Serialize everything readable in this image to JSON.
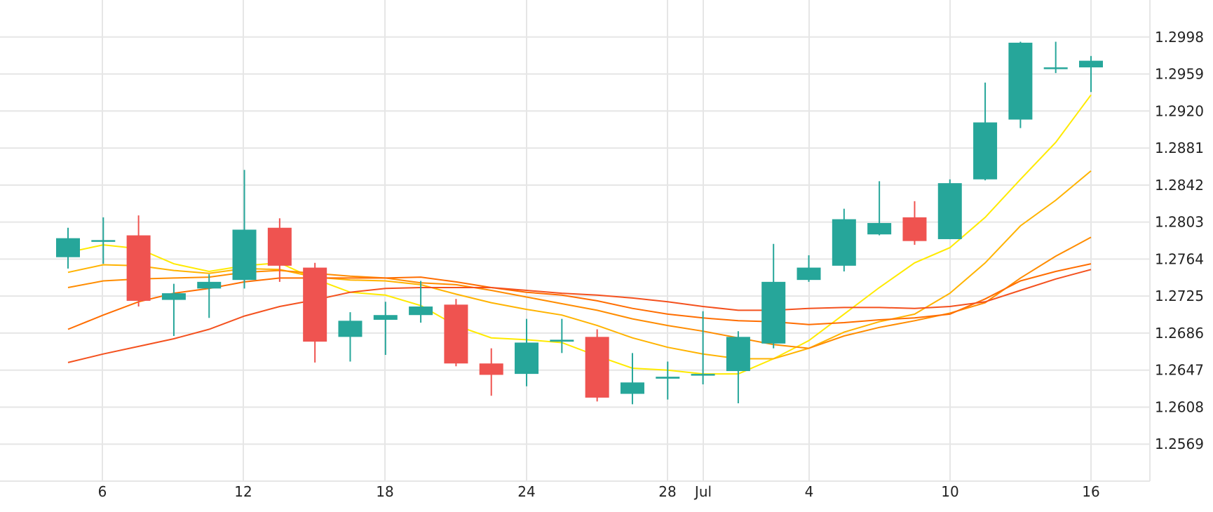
{
  "chart_data": {
    "type": "candlestick",
    "title": "",
    "xlabel": "",
    "ylabel": "",
    "grid": true,
    "colors": {
      "up": "#26a69a",
      "down": "#ef5350",
      "grid": "#e6e6e6",
      "text": "#222222"
    },
    "x_range": [
      1.0,
      41.2
    ],
    "y_range": [
      1.253,
      1.3037
    ],
    "x_ticks": [
      {
        "x": 4,
        "label": "6"
      },
      {
        "x": 10,
        "label": "12"
      },
      {
        "x": 16,
        "label": "18"
      },
      {
        "x": 22,
        "label": "24"
      },
      {
        "x": 26,
        "label": "28"
      },
      {
        "x": 27.5,
        "label": "Jul"
      },
      {
        "x": 32,
        "label": "4"
      },
      {
        "x": 38,
        "label": "10"
      },
      {
        "x": 44,
        "label": "16"
      }
    ],
    "y_ticks": [
      "1.2998",
      "1.2959",
      "1.2920",
      "1.2881",
      "1.2842",
      "1.2803",
      "1.2764",
      "1.2725",
      "1.2686",
      "1.2647",
      "1.2608",
      "1.2569"
    ],
    "candles": [
      {
        "x": 3,
        "open": 1.2766,
        "high": 1.2797,
        "low": 1.2754,
        "close": 1.2786
      },
      {
        "x": 4,
        "open": 1.2784,
        "high": 1.2808,
        "low": 1.2759,
        "close": 1.2784
      },
      {
        "x": 5,
        "open": 1.2789,
        "high": 1.281,
        "low": 1.2714,
        "close": 1.272
      },
      {
        "x": 6,
        "open": 1.2721,
        "high": 1.2738,
        "low": 1.2683,
        "close": 1.2728
      },
      {
        "x": 7,
        "open": 1.2733,
        "high": 1.2748,
        "low": 1.2702,
        "close": 1.274
      },
      {
        "x": 8,
        "open": 1.2742,
        "high": 1.2858,
        "low": 1.2733,
        "close": 1.2795
      },
      {
        "x": 9,
        "open": 1.2797,
        "high": 1.2807,
        "low": 1.274,
        "close": 1.2757
      },
      {
        "x": 10,
        "open": 1.2755,
        "high": 1.276,
        "low": 1.2655,
        "close": 1.2677
      },
      {
        "x": 11,
        "open": 1.2682,
        "high": 1.2708,
        "low": 1.2656,
        "close": 1.2699
      },
      {
        "x": 12,
        "open": 1.27,
        "high": 1.2719,
        "low": 1.2663,
        "close": 1.2705
      },
      {
        "x": 13,
        "open": 1.2705,
        "high": 1.2741,
        "low": 1.2697,
        "close": 1.2714
      },
      {
        "x": 14,
        "open": 1.2716,
        "high": 1.2722,
        "low": 1.2651,
        "close": 1.2654
      },
      {
        "x": 15,
        "open": 1.2654,
        "high": 1.267,
        "low": 1.262,
        "close": 1.2642
      },
      {
        "x": 16,
        "open": 1.2643,
        "high": 1.2701,
        "low": 1.263,
        "close": 1.2676
      },
      {
        "x": 17,
        "open": 1.2677,
        "high": 1.2701,
        "low": 1.2665,
        "close": 1.2679
      },
      {
        "x": 18,
        "open": 1.2682,
        "high": 1.269,
        "low": 1.2614,
        "close": 1.2618
      },
      {
        "x": 19,
        "open": 1.2622,
        "high": 1.2665,
        "low": 1.2611,
        "close": 1.2634
      },
      {
        "x": 20,
        "open": 1.2638,
        "high": 1.2656,
        "low": 1.2616,
        "close": 1.264
      },
      {
        "x": 21,
        "open": 1.2642,
        "high": 1.2709,
        "low": 1.2632,
        "close": 1.2643
      },
      {
        "x": 22,
        "open": 1.2646,
        "high": 1.2688,
        "low": 1.2612,
        "close": 1.2682
      },
      {
        "x": 23,
        "open": 1.2675,
        "high": 1.278,
        "low": 1.267,
        "close": 1.274
      },
      {
        "x": 24,
        "open": 1.2742,
        "high": 1.2768,
        "low": 1.274,
        "close": 1.2755
      },
      {
        "x": 25,
        "open": 1.2757,
        "high": 1.2817,
        "low": 1.2751,
        "close": 1.2806
      },
      {
        "x": 26,
        "open": 1.279,
        "high": 1.2846,
        "low": 1.2789,
        "close": 1.2802
      },
      {
        "x": 27,
        "open": 1.2808,
        "high": 1.2825,
        "low": 1.2779,
        "close": 1.2783
      },
      {
        "x": 28,
        "open": 1.2785,
        "high": 1.2848,
        "low": 1.2785,
        "close": 1.2844
      },
      {
        "x": 29,
        "open": 1.2848,
        "high": 1.295,
        "low": 1.2847,
        "close": 1.2908
      },
      {
        "x": 30,
        "open": 1.2911,
        "high": 1.2993,
        "low": 1.2902,
        "close": 1.2992
      },
      {
        "x": 31,
        "open": 1.2966,
        "high": 1.2993,
        "low": 1.296,
        "close": 1.2966
      },
      {
        "x": 32,
        "open": 1.2966,
        "high": 1.2978,
        "low": 1.294,
        "close": 1.2973
      }
    ],
    "series": [
      {
        "color": "#ffea00",
        "points": [
          [
            3,
            1.2771
          ],
          [
            4,
            1.2779
          ],
          [
            5,
            1.2775
          ],
          [
            6,
            1.2759
          ],
          [
            7,
            1.2751
          ],
          [
            8,
            1.2757
          ],
          [
            9,
            1.276
          ],
          [
            10,
            1.2743
          ],
          [
            11,
            1.2729
          ],
          [
            12,
            1.2726
          ],
          [
            13,
            1.2715
          ],
          [
            14,
            1.2694
          ],
          [
            15,
            1.2681
          ],
          [
            16,
            1.2679
          ],
          [
            17,
            1.2676
          ],
          [
            18,
            1.2662
          ],
          [
            19,
            1.2649
          ],
          [
            20,
            1.2647
          ],
          [
            21,
            1.2643
          ],
          [
            22,
            1.2643
          ],
          [
            23,
            1.2659
          ],
          [
            24,
            1.2678
          ],
          [
            25,
            1.2706
          ],
          [
            26,
            1.2734
          ],
          [
            27,
            1.276
          ],
          [
            28,
            1.2776
          ],
          [
            29,
            1.2808
          ],
          [
            30,
            1.2848
          ],
          [
            31,
            1.2887
          ],
          [
            32,
            1.2937
          ]
        ]
      },
      {
        "color": "#ffb300",
        "points": [
          [
            3,
            1.275
          ],
          [
            4,
            1.2758
          ],
          [
            5,
            1.2757
          ],
          [
            6,
            1.2752
          ],
          [
            7,
            1.2749
          ],
          [
            8,
            1.2754
          ],
          [
            9,
            1.2753
          ],
          [
            10,
            1.2745
          ],
          [
            11,
            1.2742
          ],
          [
            12,
            1.2741
          ],
          [
            13,
            1.2737
          ],
          [
            14,
            1.2727
          ],
          [
            15,
            1.2718
          ],
          [
            16,
            1.2711
          ],
          [
            17,
            1.2705
          ],
          [
            18,
            1.2694
          ],
          [
            19,
            1.2681
          ],
          [
            20,
            1.2671
          ],
          [
            21,
            1.2664
          ],
          [
            22,
            1.2659
          ],
          [
            23,
            1.2659
          ],
          [
            24,
            1.267
          ],
          [
            25,
            1.2687
          ],
          [
            26,
            1.2698
          ],
          [
            27,
            1.2706
          ],
          [
            28,
            1.2728
          ],
          [
            29,
            1.276
          ],
          [
            30,
            1.2799
          ],
          [
            31,
            1.2826
          ],
          [
            32,
            1.2857
          ]
        ]
      },
      {
        "color": "#ff8c00",
        "points": [
          [
            3,
            1.2734
          ],
          [
            4,
            1.2741
          ],
          [
            5,
            1.2743
          ],
          [
            6,
            1.2744
          ],
          [
            7,
            1.2745
          ],
          [
            8,
            1.275
          ],
          [
            9,
            1.2752
          ],
          [
            10,
            1.2749
          ],
          [
            11,
            1.2746
          ],
          [
            12,
            1.2744
          ],
          [
            13,
            1.2739
          ],
          [
            14,
            1.2737
          ],
          [
            15,
            1.2731
          ],
          [
            16,
            1.2724
          ],
          [
            17,
            1.2717
          ],
          [
            18,
            1.271
          ],
          [
            19,
            1.2701
          ],
          [
            20,
            1.2694
          ],
          [
            21,
            1.2688
          ],
          [
            22,
            1.2681
          ],
          [
            23,
            1.2674
          ],
          [
            24,
            1.267
          ],
          [
            25,
            1.2683
          ],
          [
            26,
            1.2692
          ],
          [
            27,
            1.2699
          ],
          [
            28,
            1.2707
          ],
          [
            29,
            1.2718
          ],
          [
            30,
            1.2744
          ],
          [
            31,
            1.2767
          ],
          [
            32,
            1.2787
          ]
        ]
      },
      {
        "color": "#ff6d00",
        "points": [
          [
            3,
            1.269
          ],
          [
            4,
            1.2705
          ],
          [
            5,
            1.2719
          ],
          [
            6,
            1.2728
          ],
          [
            7,
            1.2733
          ],
          [
            8,
            1.274
          ],
          [
            9,
            1.2744
          ],
          [
            10,
            1.2744
          ],
          [
            11,
            1.2744
          ],
          [
            12,
            1.2744
          ],
          [
            13,
            1.2745
          ],
          [
            14,
            1.274
          ],
          [
            15,
            1.2734
          ],
          [
            16,
            1.2729
          ],
          [
            17,
            1.2726
          ],
          [
            18,
            1.272
          ],
          [
            19,
            1.2712
          ],
          [
            20,
            1.2706
          ],
          [
            21,
            1.2702
          ],
          [
            22,
            1.2699
          ],
          [
            23,
            1.2698
          ],
          [
            24,
            1.2695
          ],
          [
            25,
            1.2697
          ],
          [
            26,
            1.27
          ],
          [
            27,
            1.2702
          ],
          [
            28,
            1.2706
          ],
          [
            29,
            1.2722
          ],
          [
            30,
            1.2741
          ],
          [
            31,
            1.2751
          ],
          [
            32,
            1.2759
          ]
        ]
      },
      {
        "color": "#f4511e",
        "points": [
          [
            3,
            1.2655
          ],
          [
            4,
            1.2664
          ],
          [
            5,
            1.2672
          ],
          [
            6,
            1.268
          ],
          [
            7,
            1.269
          ],
          [
            8,
            1.2704
          ],
          [
            9,
            1.2714
          ],
          [
            10,
            1.2721
          ],
          [
            11,
            1.2729
          ],
          [
            12,
            1.2733
          ],
          [
            13,
            1.2734
          ],
          [
            14,
            1.2734
          ],
          [
            15,
            1.2734
          ],
          [
            16,
            1.2731
          ],
          [
            17,
            1.2728
          ],
          [
            18,
            1.2726
          ],
          [
            19,
            1.2723
          ],
          [
            20,
            1.2719
          ],
          [
            21,
            1.2714
          ],
          [
            22,
            1.271
          ],
          [
            23,
            1.271
          ],
          [
            24,
            1.2712
          ],
          [
            25,
            1.2713
          ],
          [
            26,
            1.2713
          ],
          [
            27,
            1.2712
          ],
          [
            28,
            1.2714
          ],
          [
            29,
            1.2719
          ],
          [
            30,
            1.2731
          ],
          [
            31,
            1.2743
          ],
          [
            32,
            1.2753
          ]
        ]
      }
    ]
  }
}
